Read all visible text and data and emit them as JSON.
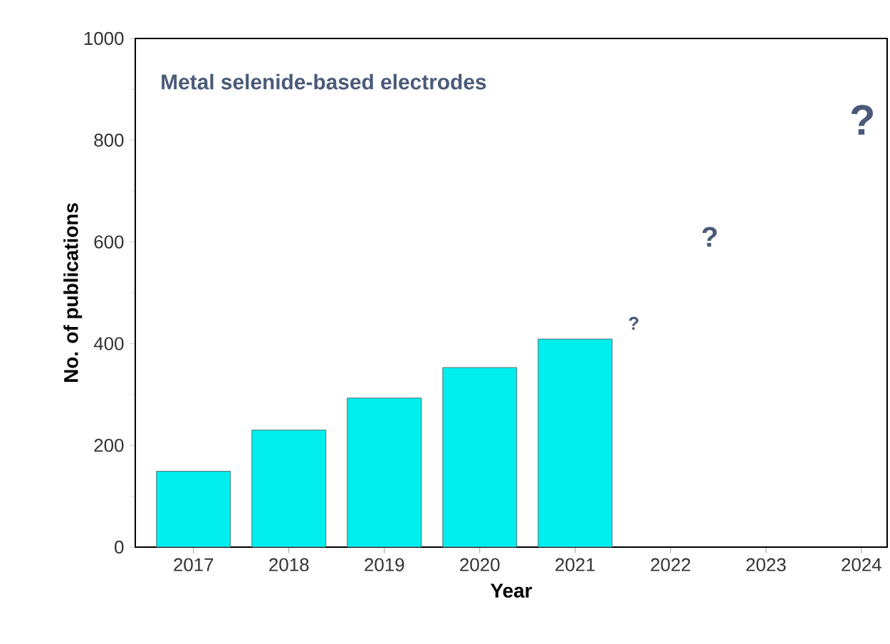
{
  "chart_data": {
    "type": "bar",
    "title": "Metal selenide-based electrodes",
    "xlabel": "Year",
    "ylabel": "No. of publications",
    "categories": [
      "2017",
      "2018",
      "2019",
      "2020",
      "2021",
      "2022",
      "2023",
      "2024"
    ],
    "values": [
      149,
      230,
      293,
      353,
      409,
      null,
      null,
      null
    ],
    "color": "#00eeee",
    "ylim": [
      0,
      1000
    ],
    "yticks": [
      0,
      200,
      400,
      600,
      800,
      1000
    ],
    "grid": false,
    "annotations": [
      "?",
      "?",
      "?"
    ]
  }
}
